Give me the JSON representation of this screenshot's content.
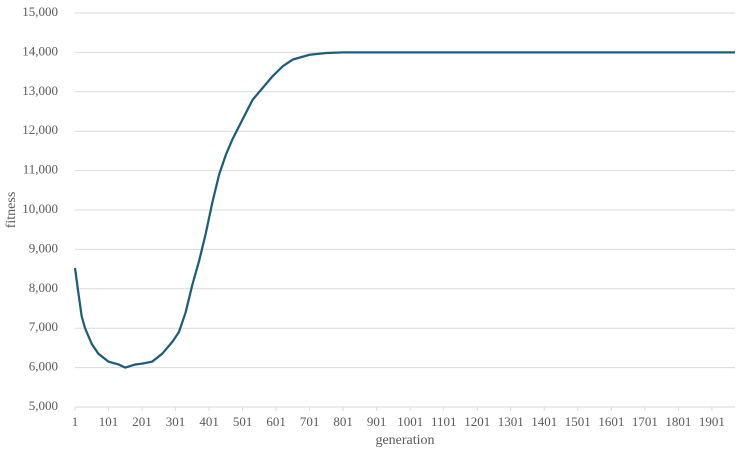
{
  "chart_data": {
    "type": "line",
    "x_label": "generation",
    "y_label": "fitness",
    "x": [
      1,
      11,
      21,
      31,
      51,
      71,
      101,
      131,
      151,
      181,
      201,
      231,
      261,
      291,
      311,
      331,
      351,
      371,
      391,
      411,
      431,
      451,
      471,
      501,
      531,
      561,
      591,
      621,
      651,
      701,
      751,
      801,
      1001,
      1501,
      1970
    ],
    "values": [
      8530,
      7900,
      7300,
      7000,
      6600,
      6350,
      6150,
      6080,
      6000,
      6080,
      6100,
      6150,
      6350,
      6650,
      6900,
      7400,
      8100,
      8700,
      9400,
      10200,
      10900,
      11400,
      11800,
      12300,
      12800,
      13100,
      13400,
      13650,
      13820,
      13940,
      13985,
      14000,
      14000,
      14000,
      14000
    ],
    "color": "#1b5e7b",
    "xlim": [
      1,
      1970
    ],
    "xticks": [
      1,
      101,
      201,
      301,
      401,
      501,
      601,
      701,
      801,
      901,
      1001,
      1101,
      1201,
      1301,
      1401,
      1501,
      1601,
      1701,
      1801,
      1901
    ],
    "ylim": [
      5000,
      15000
    ],
    "yticks": [
      {
        "value": 5000,
        "label": "5,000"
      },
      {
        "value": 6000,
        "label": "6,000"
      },
      {
        "value": 7000,
        "label": "7,000"
      },
      {
        "value": 8000,
        "label": "8,000"
      },
      {
        "value": 9000,
        "label": "9,000"
      },
      {
        "value": 10000,
        "label": "10,000"
      },
      {
        "value": 11000,
        "label": "11,000"
      },
      {
        "value": 12000,
        "label": "12,000"
      },
      {
        "value": 13000,
        "label": "13,000"
      },
      {
        "value": 14000,
        "label": "14,000"
      },
      {
        "value": 15000,
        "label": "15,000"
      }
    ],
    "grid": true
  }
}
